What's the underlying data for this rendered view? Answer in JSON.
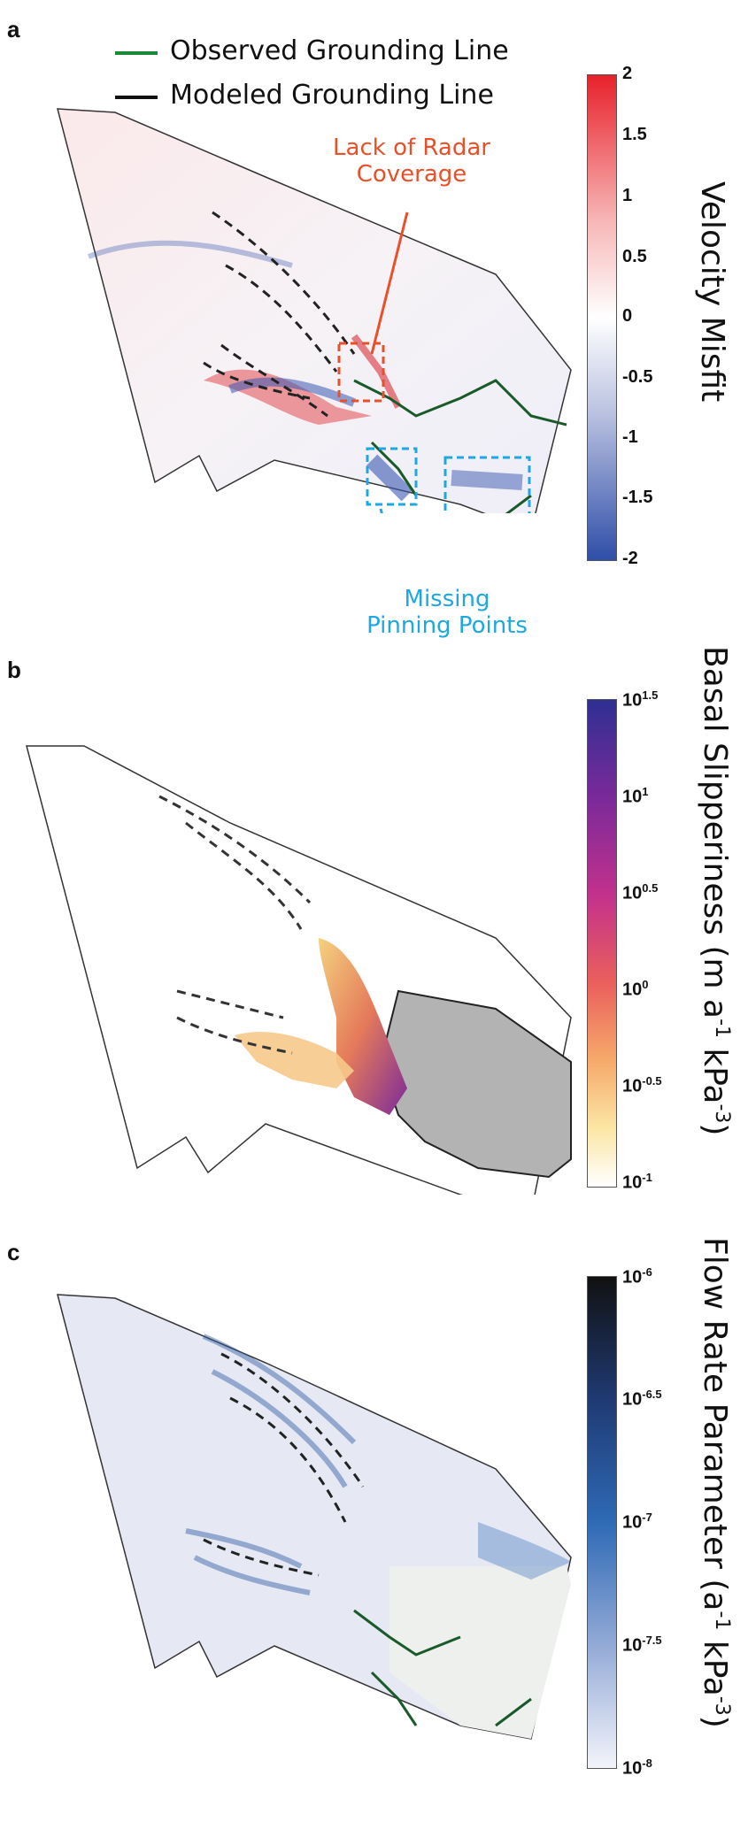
{
  "panel_a": {
    "label": "a",
    "legend": {
      "observed": "Observed Grounding Line",
      "modeled": "Modeled Grounding Line",
      "observed_color": "#1a8a3a",
      "modeled_color": "#111111"
    },
    "annotation_radar": {
      "line1": "Lack of Radar",
      "line2": "Coverage",
      "color": "#e8502a"
    },
    "annotation_pinning": {
      "line1": "Missing",
      "line2": "Pinning Points",
      "color": "#1ea7e0"
    },
    "colorbar": {
      "title": "Velocity Misfit",
      "ticks": [
        "2",
        "1.5",
        "1",
        "0.5",
        "0",
        "-0.5",
        "-1",
        "-1.5",
        "-2"
      ],
      "colors": [
        "#e8212a",
        "#ffffff",
        "#2f4ea8"
      ]
    }
  },
  "panel_b": {
    "label": "b",
    "colorbar": {
      "title_prefix": "Basal Slipperiness (m a",
      "title_exp1": "-1",
      "title_mid": " kPa",
      "title_exp2": "-3",
      "title_suffix": ")",
      "ticks": [
        {
          "base": "10",
          "exp": "1.5"
        },
        {
          "base": "10",
          "exp": "1"
        },
        {
          "base": "10",
          "exp": "0.5"
        },
        {
          "base": "10",
          "exp": "0"
        },
        {
          "base": "10",
          "exp": "-0.5"
        },
        {
          "base": "10",
          "exp": "-1"
        }
      ],
      "colors": [
        "#2e2f92",
        "#7a2a9a",
        "#c2318c",
        "#ea5f5c",
        "#f6a96a",
        "#fbe6a4",
        "#ffffff"
      ]
    }
  },
  "panel_c": {
    "label": "c",
    "colorbar": {
      "title_prefix": "Flow Rate Parameter (a",
      "title_exp1": "-1",
      "title_mid": " kPa",
      "title_exp2": "-3",
      "title_suffix": ")",
      "ticks": [
        {
          "base": "10",
          "exp": "-6"
        },
        {
          "base": "10",
          "exp": "-6.5"
        },
        {
          "base": "10",
          "exp": "-7"
        },
        {
          "base": "10",
          "exp": "-7.5"
        },
        {
          "base": "10",
          "exp": "-8"
        }
      ],
      "colors": [
        "#111111",
        "#1f3a73",
        "#2e6ab6",
        "#93aad6",
        "#f3f4fb"
      ]
    }
  }
}
